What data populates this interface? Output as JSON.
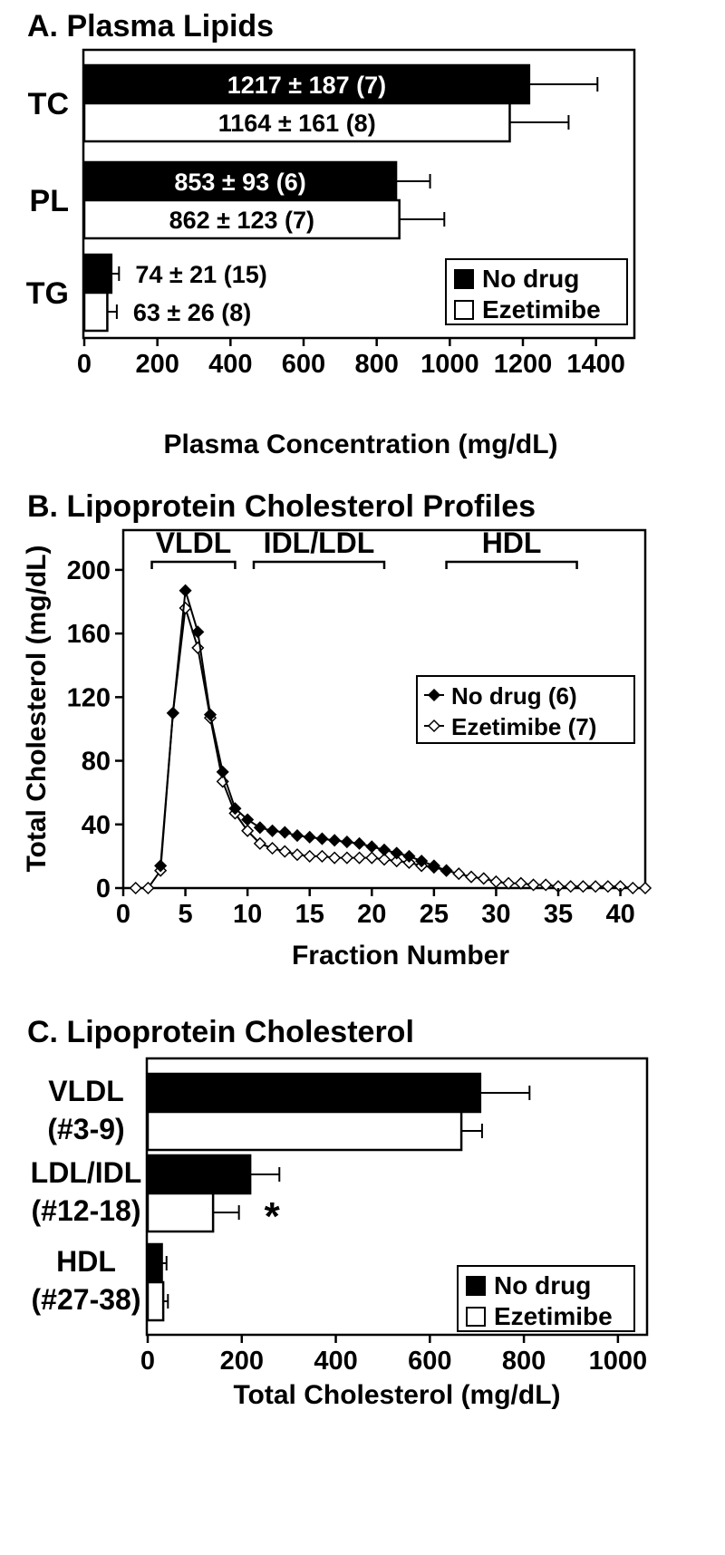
{
  "chart_data": [
    {
      "panel": "A",
      "type": "bar",
      "orientation": "horizontal",
      "title": "A. Plasma Lipids",
      "xlabel": "Plasma Concentration (mg/dL)",
      "ylabel": "",
      "xlim": [
        0,
        1500
      ],
      "xticks": [
        "0",
        "200",
        "400",
        "600",
        "800",
        "1000",
        "1200",
        "1400"
      ],
      "categories": [
        "TC",
        "PL",
        "TG"
      ],
      "legend_position": "bottom-right",
      "series": [
        {
          "name": "No drug",
          "fill": "#000000",
          "values": [
            1217,
            853,
            74
          ],
          "errors": [
            187,
            93,
            21
          ],
          "labels": [
            "1217 ± 187 (7)",
            "853 ± 93 (6)",
            "74 ± 21 (15)"
          ]
        },
        {
          "name": "Ezetimibe",
          "fill": "#ffffff",
          "values": [
            1164,
            862,
            63
          ],
          "errors": [
            161,
            123,
            26
          ],
          "labels": [
            "1164 ± 161 (8)",
            "862 ± 123 (7)",
            "63 ± 26 (8)"
          ]
        }
      ]
    },
    {
      "panel": "B",
      "type": "line",
      "title": "B. Lipoprotein Cholesterol Profiles",
      "xlabel": "Fraction Number",
      "ylabel": "Total Cholesterol (mg/dL)",
      "xlim": [
        0,
        42
      ],
      "ylim": [
        0,
        225
      ],
      "xticks": [
        "0",
        "5",
        "10",
        "15",
        "20",
        "25",
        "30",
        "35",
        "40"
      ],
      "yticks": [
        "0",
        "40",
        "80",
        "120",
        "160",
        "200"
      ],
      "legend_position": "center-right",
      "regions": [
        {
          "label": "VLDL",
          "from": 2.3,
          "to": 9
        },
        {
          "label": "IDL/LDL",
          "from": 10.5,
          "to": 21
        },
        {
          "label": "HDL",
          "from": 26,
          "to": 36.5
        }
      ],
      "series": [
        {
          "name": "No drug (6)",
          "marker": "filled-diamond",
          "x": [
            3,
            4,
            5,
            6,
            7,
            8,
            9,
            10,
            11,
            12,
            13,
            14,
            15,
            16,
            17,
            18,
            19,
            20,
            21,
            22,
            23,
            24,
            25,
            26
          ],
          "y": [
            14,
            110,
            187,
            161,
            109,
            73,
            50,
            43,
            38,
            36,
            35,
            33,
            32,
            31,
            30,
            29,
            28,
            26,
            24,
            22,
            20,
            17,
            14,
            11
          ]
        },
        {
          "name": "Ezetimibe (7)",
          "marker": "open-diamond",
          "x": [
            1,
            2,
            3,
            4,
            5,
            6,
            7,
            8,
            9,
            10,
            11,
            12,
            13,
            14,
            15,
            16,
            17,
            18,
            19,
            20,
            21,
            22,
            23,
            24,
            25,
            26,
            27,
            28,
            29,
            30,
            31,
            32,
            33,
            34,
            35,
            36,
            37,
            38,
            39,
            40,
            41,
            42
          ],
          "y": [
            0,
            0,
            11,
            110,
            176,
            151,
            107,
            67,
            47,
            36,
            28,
            25,
            23,
            21,
            20,
            20,
            19,
            19,
            19,
            19,
            18,
            17,
            16,
            14,
            13,
            11,
            9,
            7,
            6,
            4,
            3,
            3,
            2,
            2,
            1,
            1,
            1,
            1,
            1,
            1,
            0,
            0
          ]
        }
      ]
    },
    {
      "panel": "C",
      "type": "bar",
      "orientation": "horizontal",
      "title": "C. Lipoprotein Cholesterol",
      "xlabel": "Total Cholesterol (mg/dL)",
      "ylabel": "",
      "xlim": [
        0,
        1060
      ],
      "xticks": [
        "0",
        "200",
        "400",
        "600",
        "800",
        "1000"
      ],
      "categories": [
        {
          "line1": "VLDL",
          "line2": "(#3-9)"
        },
        {
          "line1": "LDL/IDL",
          "line2": "(#12-18)"
        },
        {
          "line1": "HDL",
          "line2": "(#27-38)"
        }
      ],
      "legend_position": "bottom-right",
      "annotations": [
        {
          "text": "*",
          "category": 1
        }
      ],
      "series": [
        {
          "name": "No drug",
          "fill": "#000000",
          "values": [
            707,
            218,
            30
          ],
          "errors": [
            105,
            62,
            10
          ]
        },
        {
          "name": "Ezetimibe",
          "fill": "#ffffff",
          "values": [
            667,
            139,
            33
          ],
          "errors": [
            44,
            55,
            10
          ]
        }
      ]
    }
  ]
}
